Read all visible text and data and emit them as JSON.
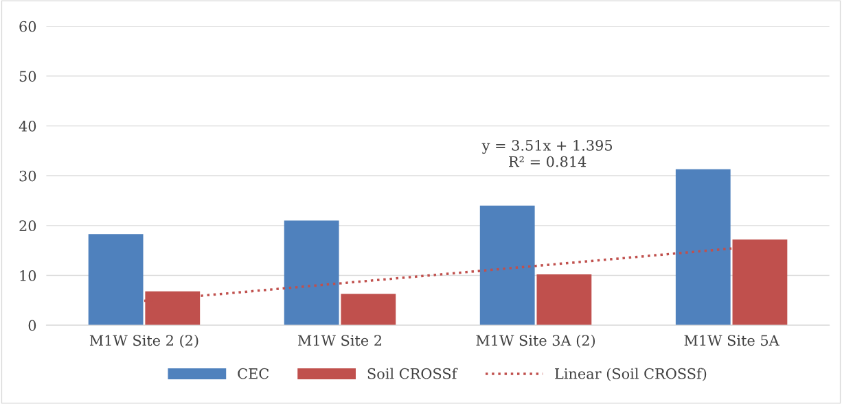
{
  "chart_data": {
    "type": "bar",
    "categories": [
      "M1W Site 2 (2)",
      "M1W Site 2",
      "M1W Site 3A (2)",
      "M1W Site 5A"
    ],
    "series": [
      {
        "name": "CEC",
        "color": "#4f81bd",
        "values": [
          18.3,
          21.0,
          24.0,
          31.3
        ]
      },
      {
        "name": "Soil CROSSf",
        "color": "#c0504d",
        "values": [
          6.8,
          6.3,
          10.2,
          17.2
        ]
      },
      {
        "name": "Linear (Soil CROSSf)",
        "type": "line",
        "line_style": "dotted",
        "color": "#c0504d",
        "values": [
          4.9,
          8.4,
          11.9,
          15.4
        ]
      }
    ],
    "ylim": [
      0,
      60
    ],
    "yticks": [
      0,
      10,
      20,
      30,
      40,
      50,
      60
    ],
    "grid": "y",
    "legend": "bottom",
    "annotations": [
      "y = 3.51x + 1.395\nR² = 0.814"
    ]
  }
}
